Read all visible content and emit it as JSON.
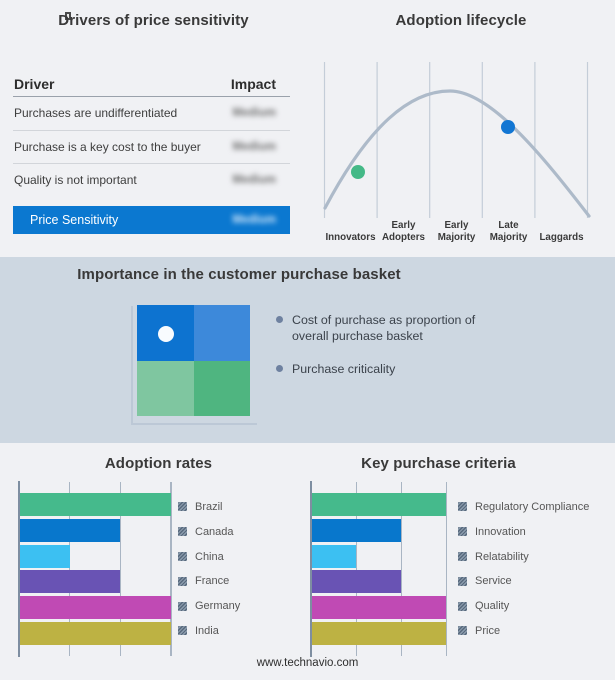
{
  "drivers": {
    "title": "Drivers of price sensitivity",
    "note": "impact values appear blurred/redacted in source"
  },
  "lifecycle": {
    "title": "Adoption lifecycle",
    "stages_display": [
      "Innovators",
      "Early\nAdopters",
      "Early\nMajority",
      "Late\nMajority",
      "Laggards"
    ]
  },
  "basket": {
    "title": "Importance in the customer purchase basket"
  },
  "footer": {
    "url": "www.technavio.com"
  },
  "chart_data": [
    {
      "type": "table",
      "title": "Drivers of price sensitivity",
      "columns": [
        "Driver",
        "Impact"
      ],
      "rows": [
        [
          "Purchases are undifferentiated",
          "Medium"
        ],
        [
          "Purchase is a key cost to the buyer",
          "Medium"
        ],
        [
          "Quality is not important",
          "Medium"
        ]
      ],
      "highlight_row": [
        "Price Sensitivity",
        "Medium"
      ],
      "highlight_color": "#0b78d0"
    },
    {
      "type": "line",
      "title": "Adoption lifecycle",
      "subtype": "bell-curve",
      "categories": [
        "Innovators",
        "Early Adopters",
        "Early Majority",
        "Late Majority",
        "Laggards"
      ],
      "curve_color": "#adbac9",
      "gridlines": true,
      "markers": [
        {
          "name": "current-position-low",
          "approx_stage": "Innovators / Early Adopters boundary",
          "color": "#44b987"
        },
        {
          "name": "current-position-high",
          "approx_stage": "Late Majority",
          "color": "#1276d3"
        }
      ]
    },
    {
      "type": "other",
      "subtype": "quadrant-graphic",
      "title": "Importance in the customer purchase basket",
      "quadrant_colors": [
        "#0d73d0",
        "#3d89da",
        "#7fc6a0",
        "#4fb580"
      ],
      "dot_quadrant": "top-left",
      "bullets": [
        "Cost of purchase as proportion of overall purchase basket",
        "Purchase criticality"
      ]
    },
    {
      "type": "bar",
      "title": "Adoption rates",
      "orientation": "horizontal",
      "categories": [
        "Brazil",
        "Canada",
        "China",
        "France",
        "Germany",
        "India"
      ],
      "values": [
        100,
        66.5,
        33,
        66.5,
        100,
        100
      ],
      "value_scale": "relative bar length, % of axis (3 gridline steps)",
      "colors": [
        "#45ba8c",
        "#0877cc",
        "#3cc0f2",
        "#6953b4",
        "#c04ab4",
        "#bdb243"
      ],
      "xlim": [
        0,
        100
      ],
      "grid": true,
      "legend_position": "right"
    },
    {
      "type": "bar",
      "title": "Key purchase criteria",
      "orientation": "horizontal",
      "categories": [
        "Regulatory Compliance",
        "Innovation",
        "Relatability",
        "Service",
        "Quality",
        "Price"
      ],
      "values": [
        100,
        66.5,
        33,
        66.5,
        100,
        100
      ],
      "value_scale": "relative bar length, % of axis (3 gridline steps)",
      "colors": [
        "#45ba8c",
        "#0877cc",
        "#3cc0f2",
        "#6953b4",
        "#c04ab4",
        "#bdb243"
      ],
      "xlim": [
        0,
        100
      ],
      "grid": true,
      "legend_position": "right"
    }
  ]
}
